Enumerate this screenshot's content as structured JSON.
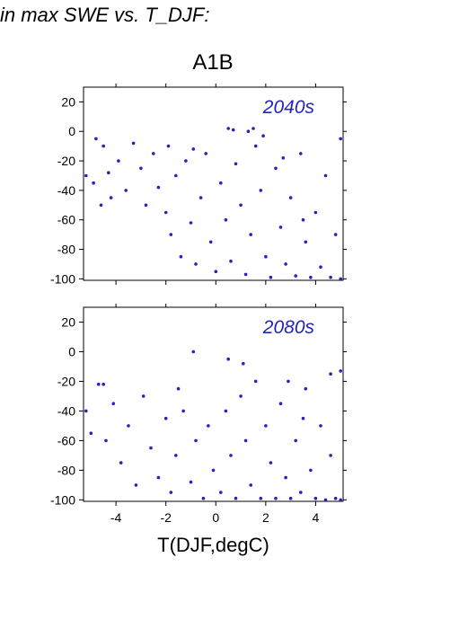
{
  "heading": "in max SWE vs. T_DJF:",
  "scenario_title": "A1B",
  "accent_color": "#2323bf",
  "chart_data": [
    {
      "type": "scatter",
      "panel_label": "2040s",
      "xlabel": "T(DJF,degC)",
      "ylabel": "",
      "xlim": [
        -5.3,
        5.1
      ],
      "ylim": [
        -101,
        30
      ],
      "x_ticks": [
        -4,
        -2,
        0,
        2,
        4
      ],
      "x_tick_labels": [],
      "y_ticks": [
        20,
        0,
        -20,
        -40,
        -60,
        -80,
        -100
      ],
      "y_tick_labels": [
        "20",
        "0",
        "-20",
        "-40",
        "-60",
        "-80",
        "-100"
      ],
      "grid": false,
      "series": [
        {
          "color": "#2323bf",
          "points": [
            [
              -4.8,
              -5
            ],
            [
              -4.5,
              -10
            ],
            [
              -4.3,
              -28
            ],
            [
              -4.9,
              -35
            ],
            [
              -5.2,
              -30
            ],
            [
              -4.6,
              -50
            ],
            [
              -4.2,
              -45
            ],
            [
              -3.9,
              -20
            ],
            [
              -3.6,
              -40
            ],
            [
              -3.3,
              -8
            ],
            [
              -3.0,
              -25
            ],
            [
              -2.8,
              -50
            ],
            [
              -2.5,
              -15
            ],
            [
              -2.3,
              -38
            ],
            [
              -2.0,
              -55
            ],
            [
              -1.8,
              -70
            ],
            [
              -1.6,
              -30
            ],
            [
              -1.4,
              -85
            ],
            [
              -1.2,
              -20
            ],
            [
              -1.0,
              -62
            ],
            [
              -0.8,
              -90
            ],
            [
              -0.6,
              -45
            ],
            [
              -0.4,
              -15
            ],
            [
              -0.2,
              -75
            ],
            [
              0.0,
              -95
            ],
            [
              0.2,
              -35
            ],
            [
              0.4,
              -60
            ],
            [
              0.6,
              -88
            ],
            [
              0.8,
              -22
            ],
            [
              1.0,
              -50
            ],
            [
              1.2,
              -97
            ],
            [
              1.4,
              -70
            ],
            [
              1.5,
              2
            ],
            [
              1.6,
              -10
            ],
            [
              1.8,
              -40
            ],
            [
              2.0,
              -85
            ],
            [
              2.2,
              -99
            ],
            [
              2.4,
              -25
            ],
            [
              2.6,
              -65
            ],
            [
              2.8,
              -90
            ],
            [
              3.0,
              -45
            ],
            [
              3.2,
              -98
            ],
            [
              3.4,
              -15
            ],
            [
              3.6,
              -75
            ],
            [
              3.8,
              -99
            ],
            [
              4.0,
              -55
            ],
            [
              4.2,
              -92
            ],
            [
              4.4,
              -30
            ],
            [
              4.6,
              -99
            ],
            [
              4.8,
              -70
            ],
            [
              5.0,
              -5
            ],
            [
              5.0,
              -100
            ],
            [
              0.5,
              2
            ],
            [
              0.7,
              1
            ],
            [
              1.3,
              0
            ],
            [
              1.9,
              -3
            ],
            [
              -1.9,
              -10
            ],
            [
              -0.9,
              -12
            ],
            [
              2.7,
              -18
            ],
            [
              3.5,
              -60
            ]
          ]
        }
      ]
    },
    {
      "type": "scatter",
      "panel_label": "2080s",
      "xlabel": "T(DJF,degC)",
      "ylabel": "",
      "xlim": [
        -5.3,
        5.1
      ],
      "ylim": [
        -101,
        30
      ],
      "x_ticks": [
        -4,
        -2,
        0,
        2,
        4
      ],
      "x_tick_labels": [
        "-4",
        "-2",
        "0",
        "2",
        "4"
      ],
      "y_ticks": [
        20,
        0,
        -20,
        -40,
        -60,
        -80,
        -100
      ],
      "y_tick_labels": [
        "20",
        "0",
        "-20",
        "-40",
        "-60",
        "-80",
        "-100"
      ],
      "grid": false,
      "series": [
        {
          "color": "#2323bf",
          "points": [
            [
              -5.2,
              -40
            ],
            [
              -5.0,
              -55
            ],
            [
              -4.7,
              -22
            ],
            [
              -4.4,
              -60
            ],
            [
              -4.1,
              -35
            ],
            [
              -3.8,
              -75
            ],
            [
              -3.5,
              -50
            ],
            [
              -3.2,
              -90
            ],
            [
              -2.9,
              -30
            ],
            [
              -2.6,
              -65
            ],
            [
              -2.3,
              -85
            ],
            [
              -2.0,
              -45
            ],
            [
              -1.8,
              -95
            ],
            [
              -1.6,
              -70
            ],
            [
              -1.3,
              -40
            ],
            [
              -1.0,
              -88
            ],
            [
              -0.8,
              -60
            ],
            [
              -0.5,
              -99
            ],
            [
              -0.3,
              -50
            ],
            [
              -0.1,
              -80
            ],
            [
              0.2,
              -95
            ],
            [
              0.4,
              -40
            ],
            [
              0.5,
              -5
            ],
            [
              0.6,
              -70
            ],
            [
              0.8,
              -99
            ],
            [
              1.0,
              -30
            ],
            [
              1.1,
              -8
            ],
            [
              1.2,
              -60
            ],
            [
              1.4,
              -90
            ],
            [
              1.6,
              -20
            ],
            [
              1.8,
              -99
            ],
            [
              2.0,
              -50
            ],
            [
              2.2,
              -75
            ],
            [
              2.4,
              -99
            ],
            [
              2.6,
              -35
            ],
            [
              2.8,
              -85
            ],
            [
              3.0,
              -99
            ],
            [
              3.2,
              -60
            ],
            [
              3.4,
              -95
            ],
            [
              3.6,
              -25
            ],
            [
              3.8,
              -80
            ],
            [
              4.0,
              -99
            ],
            [
              4.2,
              -50
            ],
            [
              4.4,
              -100
            ],
            [
              4.6,
              -70
            ],
            [
              4.8,
              -99
            ],
            [
              5.0,
              -13
            ],
            [
              5.0,
              -100
            ],
            [
              -0.9,
              0
            ],
            [
              3.5,
              -45
            ],
            [
              2.9,
              -20
            ],
            [
              4.6,
              -15
            ],
            [
              -4.5,
              -22
            ],
            [
              -1.5,
              -25
            ]
          ]
        }
      ]
    }
  ]
}
